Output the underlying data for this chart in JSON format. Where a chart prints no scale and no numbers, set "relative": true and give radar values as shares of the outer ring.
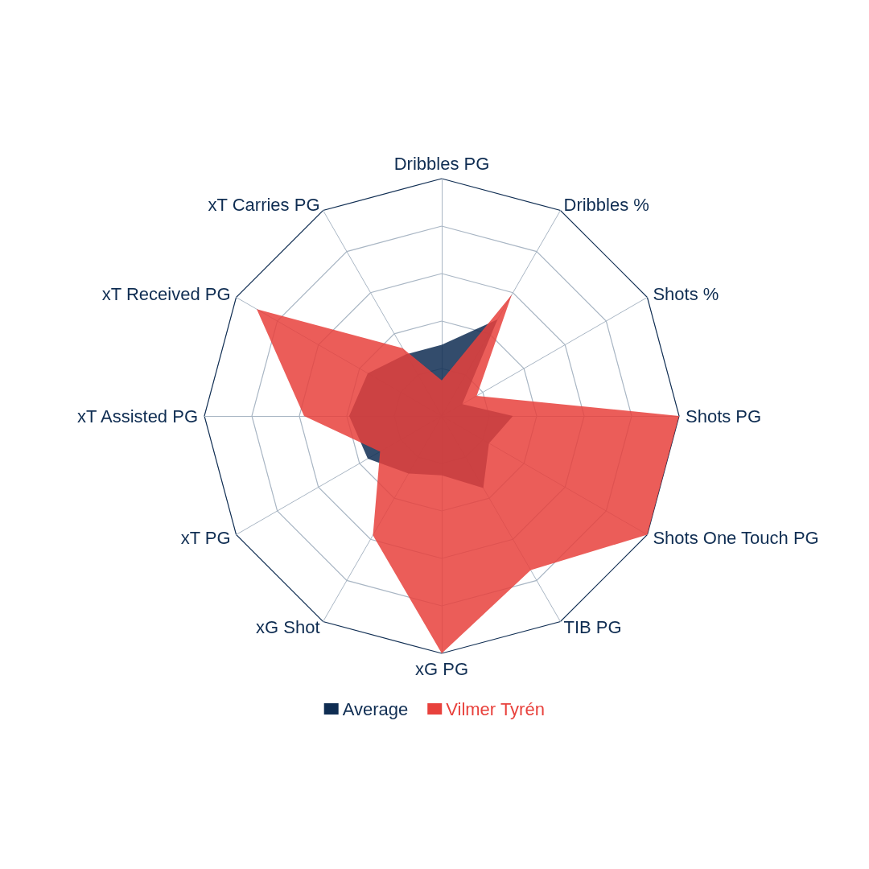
{
  "chart_data": {
    "type": "radar",
    "relative": true,
    "legend": "bottom",
    "categories": [
      "Dribbles PG",
      "Dribbles %",
      "Shots %",
      "Shots PG",
      "Shots One Touch PG",
      "TIB PG",
      "xG PG",
      "xG Shot",
      "xT PG",
      "xT Assisted PG",
      "xT Received PG",
      "xT Carries PG"
    ],
    "series": [
      {
        "name": "Average",
        "color": "#0f2d52",
        "values": [
          0.3,
          0.47,
          0.1,
          0.3,
          0.23,
          0.35,
          0.25,
          0.28,
          0.36,
          0.39,
          0.36,
          0.3
        ]
      },
      {
        "name": "Vilmer Tyrén",
        "color": "#e8413c",
        "values": [
          0.15,
          0.59,
          0.17,
          1.0,
          1.0,
          0.75,
          1.0,
          0.58,
          0.3,
          0.58,
          0.9,
          0.33
        ]
      }
    ]
  }
}
